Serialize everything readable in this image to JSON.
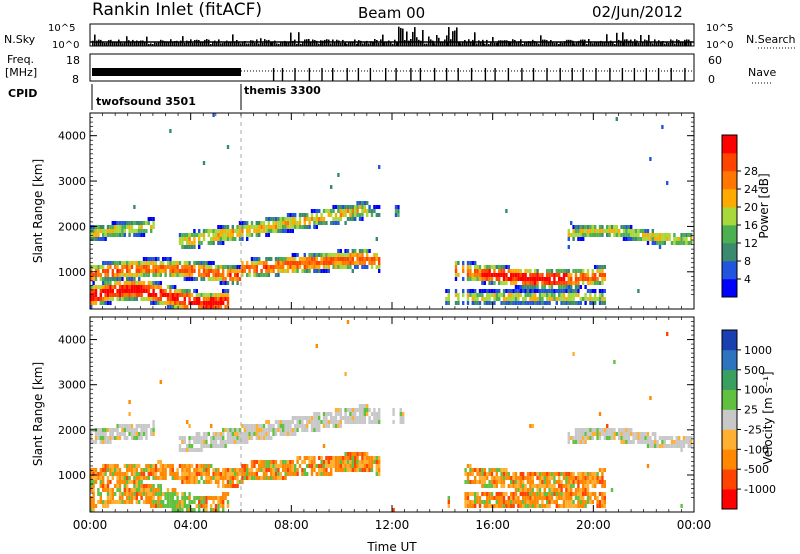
{
  "header": {
    "title": "Rankin Inlet (fitACF)",
    "beam": "Beam 00",
    "date": "02/Jun/2012"
  },
  "labels": {
    "nsky": "N.Sky",
    "freq_line1": "Freq.",
    "freq_line2": "[MHz]",
    "cpid": "CPID",
    "nsearch": "N.Search",
    "nave": "Nave",
    "power_label": "Power [dB]",
    "velocity_label": "Velocity [m s⁻¹]",
    "range_label": "Slant Range [km]",
    "time_label": "Time UT"
  },
  "programs": [
    {
      "name": "twofsound 3501",
      "start_h": 0
    },
    {
      "name": "themis 3300",
      "start_h": 6
    }
  ],
  "colors": {
    "power_scale": [
      "#0000ff",
      "#2255dd",
      "#3a8a70",
      "#4db050",
      "#a8d83a",
      "#ffaa00",
      "#ff7700",
      "#ff4400",
      "#ff0000"
    ],
    "velocity_scale": [
      "#1a3fae",
      "#2c74c0",
      "#3aa060",
      "#60c040",
      "#c8c8c8",
      "#ffb030",
      "#ff8800",
      "#ff4400",
      "#ff0000"
    ]
  },
  "chart_data": [
    {
      "type": "line",
      "title": "N.Sky / N.Search",
      "x_label": "",
      "left_ticks": [
        "10^5",
        "10^0"
      ],
      "right_ticks": [
        "10^5",
        "10^0"
      ],
      "xlim": [
        0,
        24
      ]
    },
    {
      "type": "line",
      "title": "Freq. / Nave",
      "left_ticks": [
        "18",
        "8"
      ],
      "right_ticks": [
        "60",
        "0"
      ],
      "xlim": [
        0,
        24
      ],
      "series": [
        {
          "name": "Freq.",
          "x": [
            0,
            6
          ],
          "y": [
            10.5,
            10.5
          ]
        },
        {
          "name": "Nave",
          "x": [
            6,
            24
          ],
          "y": [
            20,
            20
          ]
        }
      ]
    },
    {
      "type": "heatmap",
      "quantity": "Power",
      "unit": "dB",
      "xlim": [
        0,
        24
      ],
      "ylim": [
        180,
        4500
      ],
      "y_ticks": [
        1000,
        2000,
        3000,
        4000
      ],
      "x_ticks": [
        "00:00",
        "04:00",
        "08:00",
        "12:00",
        "16:00",
        "20:00",
        "00:00"
      ],
      "colorbar_ticks": [
        4,
        8,
        12,
        16,
        20,
        24,
        28
      ]
    },
    {
      "type": "heatmap",
      "quantity": "Velocity",
      "unit": "m s⁻¹",
      "xlim": [
        0,
        24
      ],
      "ylim": [
        180,
        4500
      ],
      "y_ticks": [
        1000,
        2000,
        3000,
        4000
      ],
      "x_ticks": [
        "00:00",
        "04:00",
        "08:00",
        "12:00",
        "16:00",
        "20:00",
        "00:00"
      ],
      "colorbar_ticks": [
        1000,
        500,
        100,
        25,
        -25,
        -100,
        -500,
        -1000
      ]
    }
  ]
}
